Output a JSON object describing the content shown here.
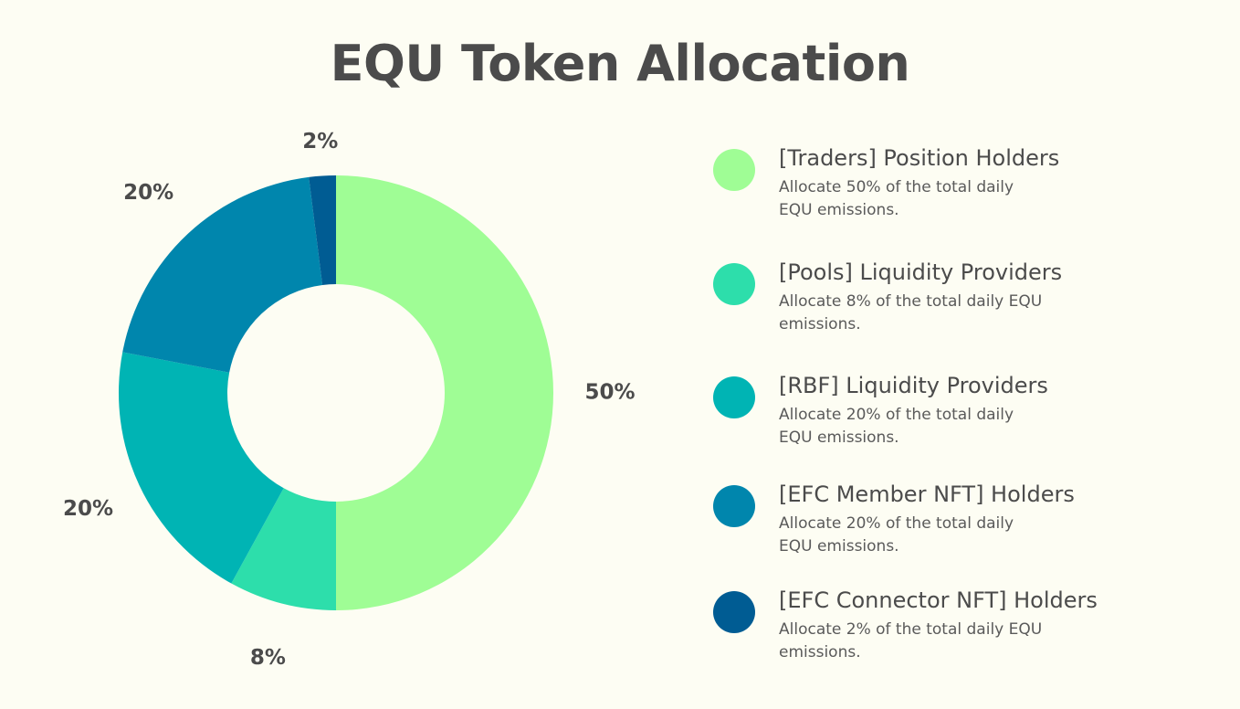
{
  "colors": {
    "background": "#fdfdf3",
    "text": "#4b4b4b"
  },
  "chart_data": {
    "type": "pie",
    "title": "EQU Token Allocation",
    "donut": true,
    "slices": [
      {
        "name": "[Traders] Position Holders",
        "value": 50,
        "label": "50%",
        "color": "#9ffd95",
        "description": "Allocate 50% of the total daily EQU emissions."
      },
      {
        "name": "[Pools] Liquidity Providers",
        "value": 8,
        "label": "8%",
        "color": "#2ddeab",
        "description": "Allocate 8% of the total daily EQU emissions."
      },
      {
        "name": "[RBF] Liquidity Providers",
        "value": 20,
        "label": "20%",
        "color": "#00b4b4",
        "description": "Allocate 20% of the total daily EQU emissions."
      },
      {
        "name": "[EFC Member NFT] Holders",
        "value": 20,
        "label": "20%",
        "color": "#0086ad",
        "description": "Allocate 20% of the total daily EQU emissions."
      },
      {
        "name": "[EFC Connector NFT] Holders",
        "value": 2,
        "label": "2%",
        "color": "#005c93",
        "description": "Allocate 2% of the total daily EQU emissions."
      }
    ],
    "legend_position": "right"
  }
}
